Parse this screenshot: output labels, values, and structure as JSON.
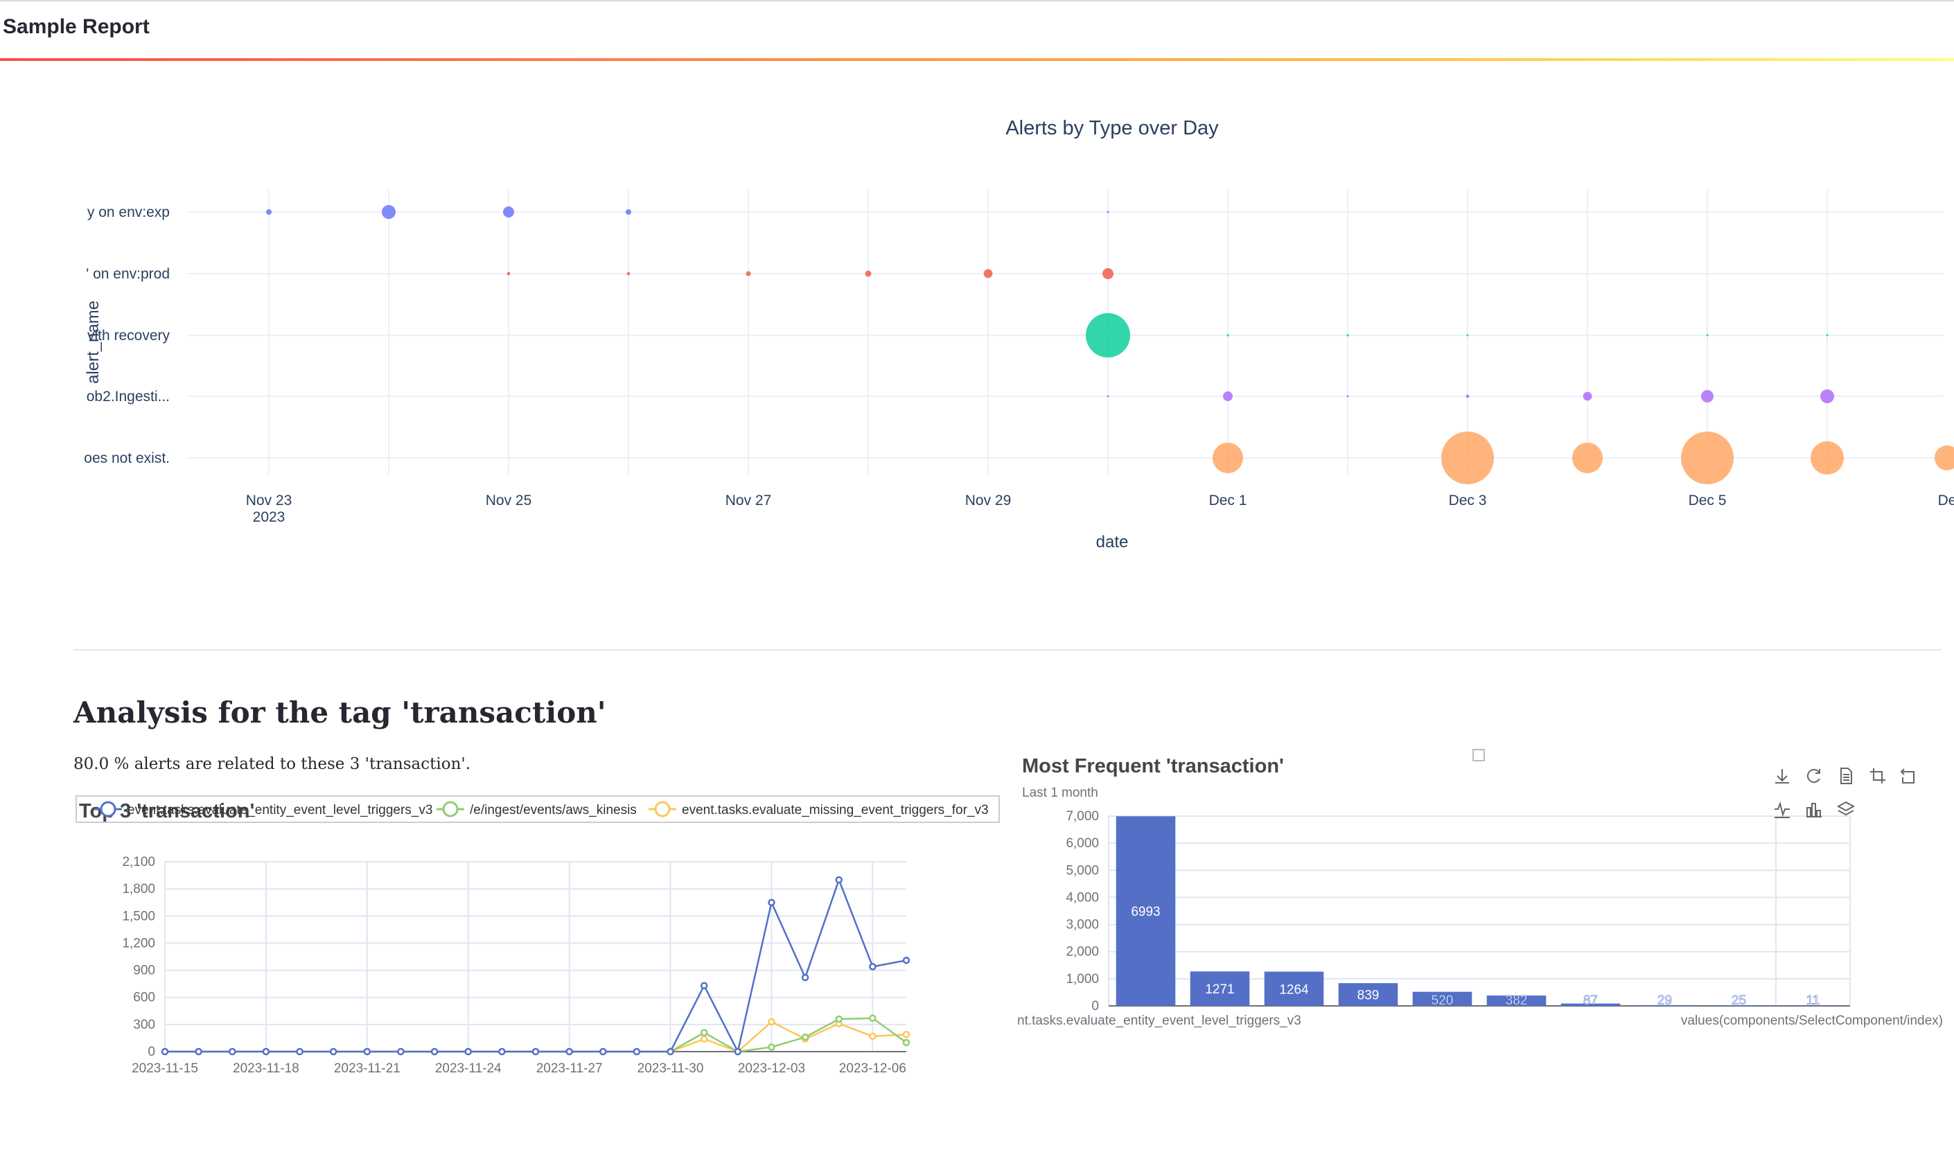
{
  "header": {
    "title": "Sample Report"
  },
  "bubble_chart": {
    "title": "Alerts by Type over Day",
    "xlabel": "date",
    "ylabel": "alert_name",
    "x_ticks": [
      "Nov 23",
      "Nov 25",
      "Nov 27",
      "Nov 29",
      "Dec 1",
      "Dec 3",
      "Dec 5",
      "De"
    ],
    "x_tick_sub": "2023",
    "y_labels": [
      "y on env:exp",
      "' on env:prod",
      "vith recovery",
      "ob2.Ingesti...",
      "oes not exist."
    ]
  },
  "section": {
    "title": "Analysis for the tag 'transaction'",
    "summary": "80.0 % alerts are related to these 3 'transaction'."
  },
  "line_chart": {
    "title": "Top 3 'transaction'",
    "legend": [
      "event.tasks.evaluate_entity_event_level_triggers_v3",
      "/e/ingest/events/aws_kinesis",
      "event.tasks.evaluate_missing_event_triggers_for_v3"
    ],
    "y_ticks": [
      "2,100",
      "1,800",
      "1,500",
      "1,200",
      "900",
      "600",
      "300",
      "0"
    ],
    "x_ticks": [
      "2023-11-15",
      "2023-11-18",
      "2023-11-21",
      "2023-11-24",
      "2023-11-27",
      "2023-11-30",
      "2023-12-03",
      "2023-12-06"
    ]
  },
  "bar_chart": {
    "title": "Most Frequent 'transaction'",
    "subtitle": "Last 1 month",
    "y_ticks": [
      "7,000",
      "6,000",
      "5,000",
      "4,000",
      "3,000",
      "2,000",
      "1,000",
      "0"
    ],
    "x_label_first": "nt.tasks.evaluate_entity_event_level_triggers_v3",
    "x_label_last": "values(components/SelectComponent/index)",
    "bar_labels": [
      "6993",
      "1271",
      "1264",
      "839",
      "520",
      "382",
      "87",
      "29",
      "25",
      "11"
    ]
  },
  "toolbar": {
    "icons": [
      "download-icon",
      "refresh-icon",
      "data-view-icon",
      "zoom-icon",
      "zoom-reset-icon",
      "line-switch-icon",
      "bar-switch-icon",
      "stack-icon"
    ]
  },
  "chart_data": [
    {
      "type": "scatter",
      "title": "Alerts by Type over Day",
      "xlabel": "date",
      "ylabel": "alert_name",
      "x_range": [
        "2023-11-22",
        "2023-12-07"
      ],
      "categories": [
        "y on env:exp",
        "' on env:prod",
        "vith recovery",
        "ob2.Ingesti...",
        "oes not exist."
      ],
      "colors": [
        "#636efa",
        "#ef553b",
        "#00cc96",
        "#ab63fa",
        "#ffa15a"
      ],
      "series": [
        {
          "name": "y on env:exp",
          "x": [
            "2023-11-23",
            "2023-11-24",
            "2023-11-25",
            "2023-11-26",
            "2023-11-30"
          ],
          "size": [
            2,
            5,
            4,
            2,
            0.3
          ]
        },
        {
          "name": "' on env:prod",
          "x": [
            "2023-11-25",
            "2023-11-26",
            "2023-11-27",
            "2023-11-28",
            "2023-11-29",
            "2023-11-30"
          ],
          "size": [
            1.2,
            1.2,
            1.8,
            2.2,
            3.2,
            4
          ]
        },
        {
          "name": "vith recovery",
          "x": [
            "2023-11-30",
            "2023-12-01",
            "2023-12-02",
            "2023-12-03",
            "2023-12-05",
            "2023-12-06"
          ],
          "size": [
            16,
            0.8,
            0.8,
            0.5,
            0.5,
            0.5
          ]
        },
        {
          "name": "ob2.Ingesti...",
          "x": [
            "2023-11-30",
            "2023-12-01",
            "2023-12-02",
            "2023-12-03",
            "2023-12-04",
            "2023-12-05",
            "2023-12-06"
          ],
          "size": [
            0.6,
            3.5,
            0.4,
            1.2,
            3.2,
            4.5,
            5
          ]
        },
        {
          "name": "oes not exist.",
          "x": [
            "2023-12-01",
            "2023-12-03",
            "2023-12-04",
            "2023-12-05",
            "2023-12-06",
            "2023-12-07"
          ],
          "size": [
            11,
            19,
            11,
            19,
            12,
            9
          ]
        }
      ]
    },
    {
      "type": "line",
      "title": "Top 3 'transaction'",
      "x": [
        "2023-11-15",
        "2023-11-16",
        "2023-11-17",
        "2023-11-18",
        "2023-11-19",
        "2023-11-20",
        "2023-11-21",
        "2023-11-22",
        "2023-11-23",
        "2023-11-24",
        "2023-11-25",
        "2023-11-26",
        "2023-11-27",
        "2023-11-28",
        "2023-11-29",
        "2023-11-30",
        "2023-12-01",
        "2023-12-02",
        "2023-12-03",
        "2023-12-04",
        "2023-12-05",
        "2023-12-06",
        "2023-12-07"
      ],
      "ylim": [
        0,
        2100
      ],
      "series": [
        {
          "name": "event.tasks.evaluate_entity_event_level_triggers_v3",
          "color": "#5470c6",
          "values": [
            0,
            0,
            0,
            0,
            0,
            0,
            0,
            0,
            0,
            0,
            0,
            0,
            0,
            0,
            0,
            0,
            730,
            0,
            1650,
            820,
            1900,
            940,
            1010
          ]
        },
        {
          "name": "/e/ingest/events/aws_kinesis",
          "color": "#91cc75",
          "values": [
            0,
            0,
            0,
            0,
            0,
            0,
            0,
            0,
            0,
            0,
            0,
            0,
            0,
            0,
            0,
            0,
            210,
            0,
            50,
            160,
            360,
            370,
            100
          ]
        },
        {
          "name": "event.tasks.evaluate_missing_event_triggers_for_v3",
          "color": "#fac858",
          "values": [
            0,
            0,
            0,
            0,
            0,
            0,
            0,
            0,
            0,
            0,
            0,
            0,
            0,
            0,
            0,
            0,
            140,
            0,
            330,
            140,
            310,
            170,
            190
          ]
        }
      ]
    },
    {
      "type": "bar",
      "title": "Most Frequent 'transaction'",
      "subtitle": "Last 1 month",
      "ylim": [
        0,
        7000
      ],
      "color": "#5470c6",
      "values": [
        6993,
        1271,
        1264,
        839,
        520,
        382,
        87,
        29,
        25,
        11
      ]
    }
  ]
}
